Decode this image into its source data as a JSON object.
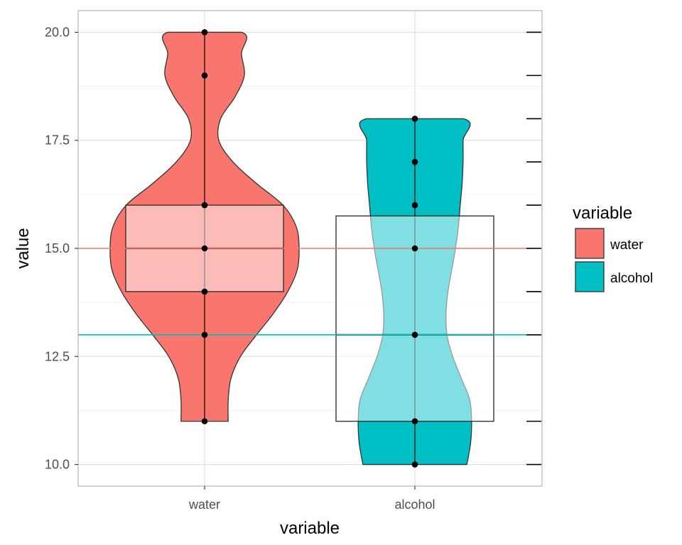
{
  "chart_data": {
    "type": "violin",
    "xlabel": "variable",
    "ylabel": "value",
    "categories": [
      "water",
      "alcohol"
    ],
    "ylim": [
      9.5,
      20.5
    ],
    "yticks": [
      "10.0",
      "12.5",
      "15.0",
      "17.5",
      "20.0"
    ],
    "grid": true,
    "legend": {
      "title": "variable",
      "position": "right",
      "entries": [
        {
          "label": "water",
          "color": "#F8766D"
        },
        {
          "label": "alcohol",
          "color": "#00BFC4"
        }
      ]
    },
    "series": [
      {
        "category": "water",
        "color": "#F8766D",
        "points": [
          20,
          19,
          16,
          15,
          14,
          13,
          11
        ],
        "box": {
          "q1": 14,
          "median": 15,
          "q3": 16
        },
        "reference_line": 15,
        "violin_range": [
          11,
          20
        ],
        "violin_widths": [
          [
            11,
            0.25
          ],
          [
            11.5,
            0.25
          ],
          [
            12,
            0.28
          ],
          [
            12.5,
            0.38
          ],
          [
            13,
            0.55
          ],
          [
            13.5,
            0.73
          ],
          [
            14,
            0.88
          ],
          [
            14.5,
            0.98
          ],
          [
            15,
            1.0
          ],
          [
            15.5,
            0.97
          ],
          [
            16,
            0.83
          ],
          [
            16.5,
            0.55
          ],
          [
            17,
            0.3
          ],
          [
            17.5,
            0.15
          ],
          [
            18,
            0.17
          ],
          [
            18.5,
            0.32
          ],
          [
            19,
            0.42
          ],
          [
            19.5,
            0.39
          ],
          [
            20,
            0.39
          ]
        ]
      },
      {
        "category": "alcohol",
        "color": "#00BFC4",
        "points": [
          18,
          17,
          16,
          15,
          13,
          11,
          10
        ],
        "box": {
          "q1": 11,
          "median": 13,
          "q3": 15.75
        },
        "reference_line": 13,
        "violin_range": [
          10,
          18
        ],
        "violin_widths": [
          [
            10,
            0.55
          ],
          [
            10.5,
            0.59
          ],
          [
            11,
            0.6
          ],
          [
            11.5,
            0.58
          ],
          [
            12,
            0.49
          ],
          [
            12.5,
            0.4
          ],
          [
            13,
            0.34
          ],
          [
            13.5,
            0.33
          ],
          [
            14,
            0.35
          ],
          [
            14.5,
            0.39
          ],
          [
            15,
            0.43
          ],
          [
            15.5,
            0.46
          ],
          [
            16,
            0.48
          ],
          [
            16.5,
            0.5
          ],
          [
            17,
            0.51
          ],
          [
            17.5,
            0.51
          ],
          [
            18,
            0.51
          ]
        ]
      }
    ]
  }
}
